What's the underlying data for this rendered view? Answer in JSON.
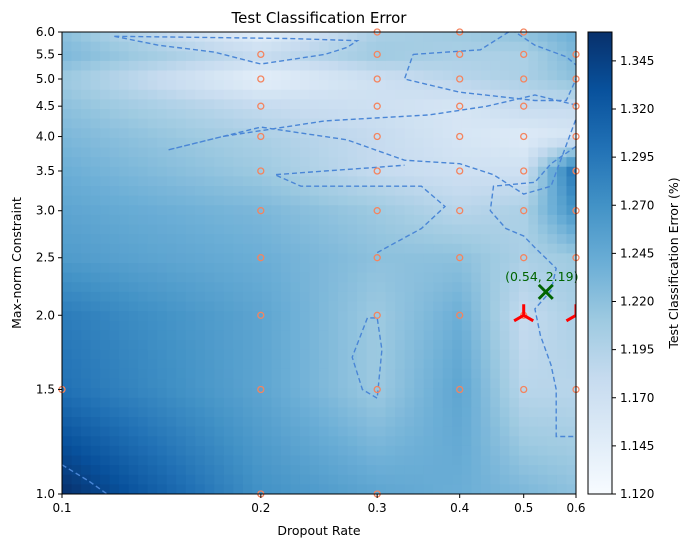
{
  "chart_data": {
    "type": "heatmap",
    "title": "Test Classification Error",
    "xlabel": "Dropout Rate",
    "ylabel": "Max-norm Constraint",
    "colorbar_label": "Test Classification Error (%)",
    "x_scale": "log",
    "y_scale": "log",
    "xlim": [
      0.1,
      0.6
    ],
    "ylim": [
      1.0,
      6.0
    ],
    "x_ticks": [
      "0.1",
      "0.2",
      "0.3",
      "0.4",
      "0.5",
      "0.6"
    ],
    "y_ticks": [
      "1.0",
      "1.5",
      "2.0",
      "2.5",
      "3.0",
      "3.5",
      "4.0",
      "4.5",
      "5.0",
      "5.5",
      "6.0"
    ],
    "colorbar_range": [
      1.12,
      1.36
    ],
    "colorbar_ticks": [
      "1.120",
      "1.145",
      "1.170",
      "1.195",
      "1.220",
      "1.245",
      "1.270",
      "1.295",
      "1.320",
      "1.345"
    ],
    "colormap": "Blues",
    "sample_points": {
      "color": "#f4845f",
      "points": [
        [
          0.1,
          1.5
        ],
        [
          0.2,
          1.0
        ],
        [
          0.2,
          1.5
        ],
        [
          0.2,
          2.0
        ],
        [
          0.2,
          2.5
        ],
        [
          0.2,
          3.0
        ],
        [
          0.2,
          3.5
        ],
        [
          0.2,
          4.0
        ],
        [
          0.2,
          4.5
        ],
        [
          0.2,
          5.0
        ],
        [
          0.2,
          5.5
        ],
        [
          0.3,
          1.0
        ],
        [
          0.3,
          1.5
        ],
        [
          0.3,
          2.0
        ],
        [
          0.3,
          2.5
        ],
        [
          0.3,
          3.0
        ],
        [
          0.3,
          3.5
        ],
        [
          0.3,
          4.0
        ],
        [
          0.3,
          4.5
        ],
        [
          0.3,
          5.0
        ],
        [
          0.3,
          5.5
        ],
        [
          0.3,
          6.0
        ],
        [
          0.4,
          1.5
        ],
        [
          0.4,
          2.0
        ],
        [
          0.4,
          2.5
        ],
        [
          0.4,
          3.0
        ],
        [
          0.4,
          3.5
        ],
        [
          0.4,
          4.0
        ],
        [
          0.4,
          4.5
        ],
        [
          0.4,
          5.0
        ],
        [
          0.4,
          5.5
        ],
        [
          0.4,
          6.0
        ],
        [
          0.5,
          1.5
        ],
        [
          0.5,
          2.0
        ],
        [
          0.5,
          2.5
        ],
        [
          0.5,
          3.0
        ],
        [
          0.5,
          3.5
        ],
        [
          0.5,
          4.0
        ],
        [
          0.5,
          4.5
        ],
        [
          0.5,
          5.0
        ],
        [
          0.5,
          5.5
        ],
        [
          0.5,
          6.0
        ],
        [
          0.6,
          1.5
        ],
        [
          0.6,
          2.5
        ],
        [
          0.6,
          3.0
        ],
        [
          0.6,
          3.5
        ],
        [
          0.6,
          4.0
        ],
        [
          0.6,
          4.5
        ],
        [
          0.6,
          5.0
        ],
        [
          0.6,
          5.5
        ]
      ]
    },
    "optimum": {
      "x": 0.54,
      "y": 2.19,
      "label": "(0.54, 2.19)",
      "color": "#006400"
    },
    "red_markers": {
      "color": "#ff0000",
      "points": [
        [
          0.5,
          2.0
        ],
        [
          0.6,
          2.0
        ]
      ]
    },
    "contour_line_color": "#4a86d6",
    "error_grid": {
      "x": [
        0.1,
        0.2,
        0.3,
        0.4,
        0.5,
        0.6
      ],
      "y": [
        1.0,
        1.5,
        2.0,
        2.5,
        3.0,
        3.5,
        4.0,
        4.5,
        5.0,
        5.5,
        6.0
      ],
      "z": [
        [
          1.36,
          1.27,
          1.25,
          1.24,
          1.23,
          1.22
        ],
        [
          1.3,
          1.25,
          1.21,
          1.25,
          1.19,
          1.19
        ],
        [
          1.29,
          1.25,
          1.21,
          1.24,
          1.18,
          1.2
        ],
        [
          1.26,
          1.24,
          1.22,
          1.22,
          1.2,
          1.21
        ],
        [
          1.25,
          1.23,
          1.21,
          1.19,
          1.2,
          1.27
        ],
        [
          1.24,
          1.21,
          1.18,
          1.17,
          1.17,
          1.3
        ],
        [
          1.23,
          1.2,
          1.18,
          1.16,
          1.15,
          1.16
        ],
        [
          1.22,
          1.18,
          1.17,
          1.16,
          1.18,
          1.18
        ],
        [
          1.21,
          1.14,
          1.17,
          1.19,
          1.2,
          1.22
        ],
        [
          1.23,
          1.18,
          1.21,
          1.2,
          1.2,
          1.23
        ],
        [
          1.22,
          1.14,
          1.2,
          1.21,
          1.22,
          1.24
        ]
      ]
    }
  }
}
